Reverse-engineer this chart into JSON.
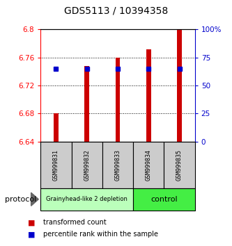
{
  "title": "GDS5113 / 10394358",
  "samples": [
    "GSM999831",
    "GSM999832",
    "GSM999833",
    "GSM999834",
    "GSM999835"
  ],
  "bar_values": [
    6.68,
    6.748,
    6.76,
    6.772,
    6.8
  ],
  "bar_baseline": 6.64,
  "percentile_values": [
    65,
    65,
    65,
    65,
    65
  ],
  "ylim_left": [
    6.64,
    6.8
  ],
  "ylim_right": [
    0,
    100
  ],
  "yticks_left": [
    6.64,
    6.68,
    6.72,
    6.76,
    6.8
  ],
  "yticks_right": [
    0,
    25,
    50,
    75,
    100
  ],
  "bar_color": "#cc0000",
  "percentile_color": "#0000cc",
  "groups": [
    {
      "label": "Grainyhead-like 2 depletion",
      "indices": [
        0,
        1,
        2
      ],
      "color": "#bbffbb"
    },
    {
      "label": "control",
      "indices": [
        3,
        4
      ],
      "color": "#44ee44"
    }
  ],
  "protocol_label": "protocol",
  "legend": [
    {
      "label": "transformed count",
      "color": "#cc0000"
    },
    {
      "label": "percentile rank within the sample",
      "color": "#0000cc"
    }
  ],
  "bar_width": 0.15,
  "title_fontsize": 10,
  "tick_fontsize": 7.5,
  "label_fontsize": 7
}
